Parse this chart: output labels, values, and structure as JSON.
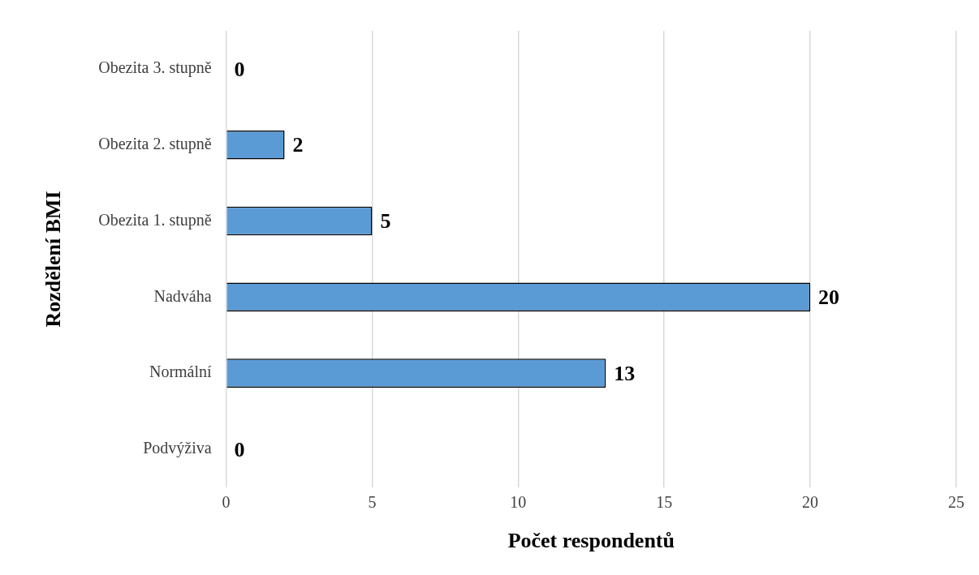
{
  "chart_data": {
    "type": "bar",
    "orientation": "horizontal",
    "xlabel": "Počet respondentů",
    "ylabel": "Rozdělení BMI",
    "categories": [
      "Obezita 3. stupně",
      "Obezita 2. stupně",
      "Obezita 1. stupně",
      "Nadváha",
      "Normální",
      "Podvýživa"
    ],
    "values": [
      0,
      2,
      5,
      20,
      13,
      0
    ],
    "color": "#5b9bd5",
    "xlim": [
      0,
      25
    ],
    "xticks": [
      0,
      5,
      10,
      15,
      20,
      25
    ],
    "grid": "x",
    "data_labels": true,
    "legend": false
  }
}
